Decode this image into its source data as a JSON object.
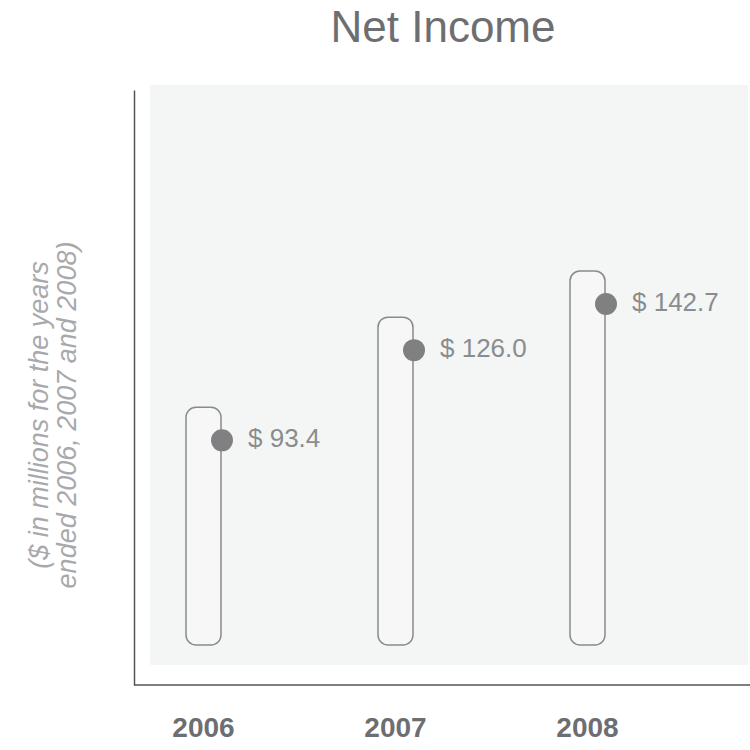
{
  "chart_data": {
    "type": "bar",
    "title": "Net Income",
    "y_label": [
      "($ in millions for the years",
      "ended 2006, 2007 and 2008)"
    ],
    "categories": [
      "2006",
      "2007",
      "2008"
    ],
    "values": [
      93.4,
      126.0,
      142.7
    ],
    "value_labels": [
      "$ 93.4",
      "$ 126.0",
      "$ 142.7"
    ],
    "color": "#808083",
    "marker": "circle",
    "ylim": [
      5,
      220
    ],
    "yticks": [],
    "grid": false,
    "data_labels": true,
    "tick_labels": "x"
  }
}
